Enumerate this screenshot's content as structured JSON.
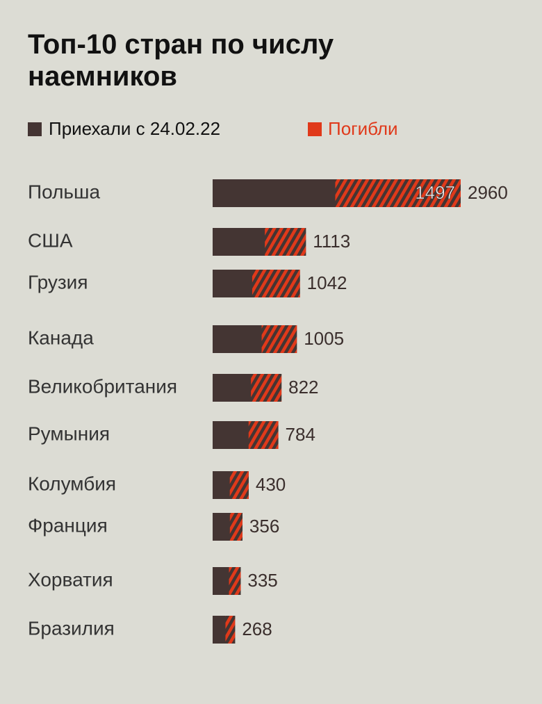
{
  "chart_data": {
    "type": "bar",
    "orientation": "horizontal",
    "title": "Топ-10 стран по числу наемников",
    "categories": [
      "Польша",
      "США",
      "Грузия",
      "Канада",
      "Великобритания",
      "Румыния",
      "Колумбия",
      "Франция",
      "Хорватия",
      "Бразилия"
    ],
    "series": [
      {
        "name": "Приехали с 24.02.22",
        "color": "#443533",
        "values": [
          2960,
          1113,
          1042,
          1005,
          822,
          784,
          430,
          356,
          335,
          268
        ]
      },
      {
        "name": "Погибли",
        "color": "#e0391a",
        "values": [
          1497,
          490,
          570,
          420,
          365,
          355,
          225,
          150,
          140,
          115
        ],
        "value_labels": [
          "1497",
          null,
          null,
          null,
          null,
          null,
          null,
          null,
          null,
          null
        ]
      }
    ],
    "xlim": [
      0,
      2960
    ]
  }
}
